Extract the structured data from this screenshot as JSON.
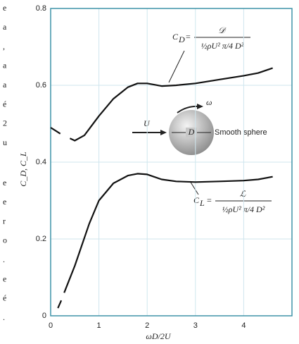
{
  "chart_data": {
    "type": "line",
    "x_label": "ωD/2U",
    "y_label": "C_D, C_L",
    "xlim": [
      0,
      5
    ],
    "xticks": [
      0,
      1,
      2,
      3,
      4
    ],
    "ylim": [
      0,
      0.8
    ],
    "yticks": [
      0,
      0.2,
      0.4,
      0.6,
      0.8
    ],
    "grid": true,
    "frame_color": "#3f93a8",
    "grid_color": "#cfe6ee",
    "series": [
      {
        "name": "C_D",
        "color": "#111",
        "x": [
          0,
          0.1,
          0.2,
          0.3,
          0.4,
          0.5,
          0.7,
          1.0,
          1.3,
          1.6,
          1.8,
          2.0,
          2.3,
          2.6,
          3.0,
          3.5,
          4.0,
          4.3,
          4.6
        ],
        "values": [
          0.49,
          0.482,
          0.474,
          null,
          0.462,
          0.456,
          0.47,
          0.52,
          0.565,
          0.595,
          0.605,
          0.605,
          0.598,
          0.6,
          0.605,
          0.615,
          0.625,
          0.632,
          0.645
        ]
      },
      {
        "name": "C_L",
        "color": "#111",
        "x": [
          0.15,
          0.22,
          0.25,
          0.28,
          0.5,
          0.8,
          1.0,
          1.3,
          1.6,
          1.8,
          2.0,
          2.3,
          2.6,
          3.0,
          3.5,
          4.0,
          4.3,
          4.6
        ],
        "values": [
          0.02,
          0.04,
          null,
          0.06,
          0.13,
          0.24,
          0.3,
          0.345,
          0.365,
          0.37,
          0.368,
          0.355,
          0.35,
          0.348,
          0.35,
          0.352,
          0.355,
          0.362
        ]
      }
    ],
    "annotations": {
      "drag_formula": {
        "symbol": "C",
        "subscript": "D",
        "equals": "=",
        "numerator": "𝒟",
        "denominator": "½ρU² π/4 D²"
      },
      "lift_formula": {
        "symbol": "C",
        "subscript": "L",
        "equals": "=",
        "numerator": "ℒ",
        "denominator": "½ρU² π/4 D²"
      },
      "velocity": "U",
      "rotation": "ω",
      "diameter": "D",
      "sphere": "Smooth sphere"
    }
  },
  "margin_text_upper": [
    "e",
    "a",
    ",",
    "a",
    "a",
    "é",
    "2",
    "u"
  ],
  "margin_text_lower": [
    "e",
    "e",
    "r",
    "o",
    ".",
    "e",
    "é",
    "."
  ]
}
